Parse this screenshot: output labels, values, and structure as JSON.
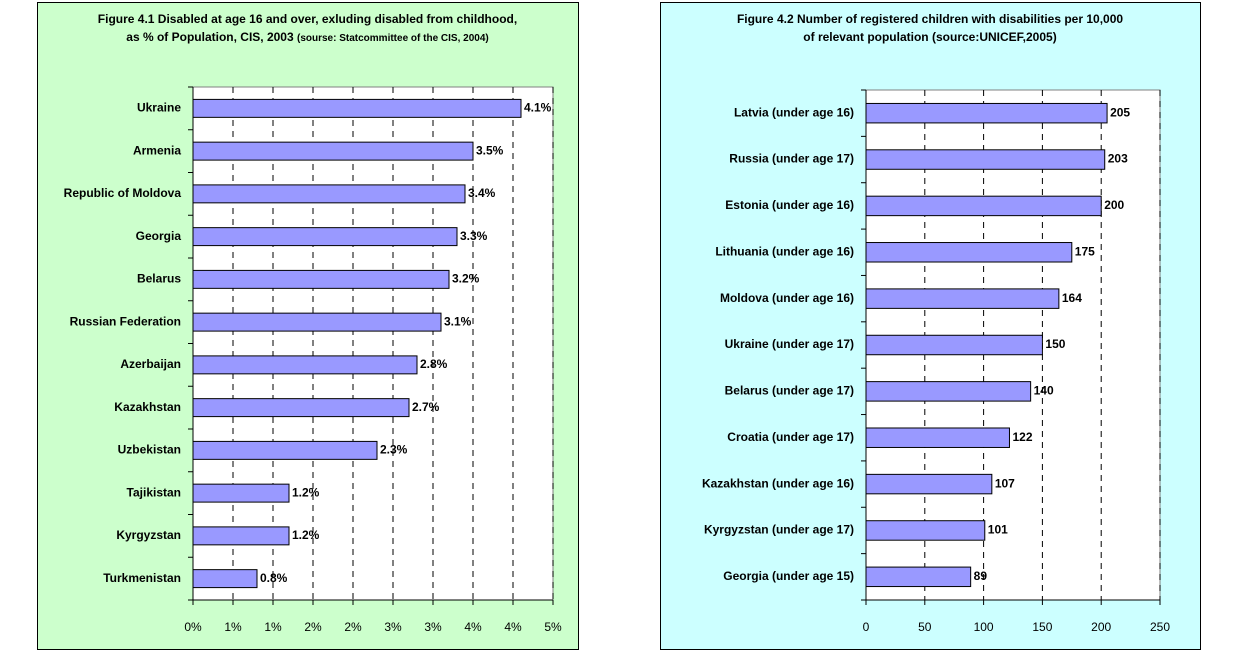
{
  "chart_data": [
    {
      "type": "hbar",
      "title_lines": [
        "Figure 4.1 Disabled at age 16 and over, exluding disabled from childhood,",
        "as % of Population, CIS, 2003"
      ],
      "source": "(sourse: Statcommittee of the CIS, 2004)",
      "categories": [
        "Ukraine",
        "Armenia",
        "Republic of Moldova",
        "Georgia",
        "Belarus",
        "Russian Federation",
        "Azerbaijan",
        "Kazakhstan",
        "Uzbekistan",
        "Tajikistan",
        "Kyrgyzstan",
        "Turkmenistan"
      ],
      "values": [
        4.1,
        3.5,
        3.4,
        3.3,
        3.2,
        3.1,
        2.8,
        2.7,
        2.3,
        1.2,
        1.2,
        0.8
      ],
      "value_labels": [
        "4.1%",
        "3.5%",
        "3.4%",
        "3.3%",
        "3.2%",
        "3.1%",
        "2.8%",
        "2.7%",
        "2.3%",
        "1.2%",
        "1.2%",
        "0.8%"
      ],
      "color": "#9999ff",
      "background": "#ccffcc",
      "xlim": [
        0,
        4.5
      ],
      "xticks": [
        {
          "value": 0,
          "label": "0%"
        },
        {
          "value": 0.5,
          "label": "1%"
        },
        {
          "value": 1,
          "label": "1%"
        },
        {
          "value": 1.5,
          "label": "2%"
        },
        {
          "value": 2,
          "label": "2%"
        },
        {
          "value": 2.5,
          "label": "3%"
        },
        {
          "value": 3,
          "label": "3%"
        },
        {
          "value": 3.5,
          "label": "4%"
        },
        {
          "value": 4,
          "label": "4%"
        },
        {
          "value": 4.5,
          "label": "5%"
        }
      ],
      "grid": true
    },
    {
      "type": "hbar",
      "title_lines": [
        "Figure 4.2 Number of registered children with disabilities per 10,000",
        "of relevant population"
      ],
      "source": "(source:UNICEF,2005)",
      "categories": [
        "Latvia (under age 16)",
        "Russia (under age 17)",
        "Estonia (under age 16)",
        "Lithuania (under age 16)",
        "Moldova (under age 16)",
        "Ukraine (under age 17)",
        "Belarus (under age 17)",
        "Croatia (under age 17)",
        "Kazakhstan (under age 16)",
        "Kyrgyzstan (under age 17)",
        "Georgia (under age 15)"
      ],
      "values": [
        205,
        203,
        200,
        175,
        164,
        150,
        140,
        122,
        107,
        101,
        89
      ],
      "color": "#9999ff",
      "background": "#ccffff",
      "xlim": [
        0,
        250
      ],
      "xticks": [
        0,
        50,
        100,
        150,
        200,
        250
      ],
      "grid": true
    }
  ]
}
